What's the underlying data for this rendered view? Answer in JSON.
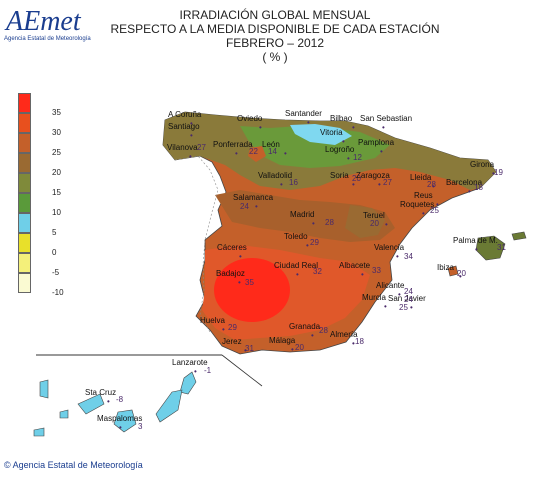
{
  "title_lines": [
    "IRRADIACIÓN GLOBAL MENSUAL",
    "RESPECTO A LA MEDIA DISPONIBLE DE CADA ESTACIÓN",
    "FEBRERO – 2012",
    "( % )"
  ],
  "legend": [
    {
      "value": "35",
      "color": "#ff2a1a"
    },
    {
      "value": "30",
      "color": "#e8501e"
    },
    {
      "value": "25",
      "color": "#c4602a"
    },
    {
      "value": "20",
      "color": "#9a6a32"
    },
    {
      "value": "15",
      "color": "#7f8a3a"
    },
    {
      "value": "10",
      "color": "#5a9a3a"
    },
    {
      "value": "5",
      "color": "#6fcfe8"
    },
    {
      "value": "0",
      "color": "#e8e02a"
    },
    {
      "value": "-5",
      "color": "#f4f07a"
    },
    {
      "value": "-10",
      "color": "#fafad2"
    }
  ],
  "stations": [
    {
      "name": "A Coruña",
      "value": "",
      "nx": 168,
      "ny": 117,
      "vx": 0,
      "vy": 0
    },
    {
      "name": "Santiago",
      "value": "",
      "nx": 168,
      "ny": 129,
      "vx": 0,
      "vy": 0
    },
    {
      "name": "Oviedo",
      "value": "",
      "nx": 237,
      "ny": 121,
      "vx": 0,
      "vy": 0
    },
    {
      "name": "Santander",
      "value": "",
      "nx": 285,
      "ny": 116,
      "vx": 0,
      "vy": 0
    },
    {
      "name": "Bilbao",
      "value": "",
      "nx": 330,
      "ny": 121,
      "vx": 0,
      "vy": 0
    },
    {
      "name": "San Sebastian",
      "value": "",
      "nx": 360,
      "ny": 121,
      "vx": 0,
      "vy": 0
    },
    {
      "name": "Vitoria",
      "value": "",
      "nx": 320,
      "ny": 135,
      "vx": 0,
      "vy": 0
    },
    {
      "name": "Pamplona",
      "value": "",
      "nx": 358,
      "ny": 145,
      "vx": 0,
      "vy": 0
    },
    {
      "name": "Vilanova",
      "value": "27",
      "nx": 167,
      "ny": 150,
      "vx": 197,
      "vy": 150
    },
    {
      "name": "Ponferrada",
      "value": "22",
      "nx": 213,
      "ny": 147,
      "vx": 249,
      "vy": 154
    },
    {
      "name": "León",
      "value": "14",
      "nx": 262,
      "ny": 147,
      "vx": 268,
      "vy": 154
    },
    {
      "name": "Logroño",
      "value": "12",
      "nx": 325,
      "ny": 152,
      "vx": 353,
      "vy": 160
    },
    {
      "name": "Soria",
      "value": "20",
      "nx": 330,
      "ny": 178,
      "vx": 352,
      "vy": 181
    },
    {
      "name": "Zaragoza",
      "value": "27",
      "nx": 356,
      "ny": 178,
      "vx": 383,
      "vy": 185
    },
    {
      "name": "Lleida",
      "value": "28",
      "nx": 410,
      "ny": 180,
      "vx": 427,
      "vy": 187
    },
    {
      "name": "Girona",
      "value": "19",
      "nx": 470,
      "ny": 167,
      "vx": 494,
      "vy": 175
    },
    {
      "name": "Barcelona",
      "value": "18",
      "nx": 446,
      "ny": 185,
      "vx": 474,
      "vy": 190
    },
    {
      "name": "Valladolid",
      "value": "16",
      "nx": 258,
      "ny": 178,
      "vx": 289,
      "vy": 185
    },
    {
      "name": "Salamanca",
      "value": "24",
      "nx": 233,
      "ny": 200,
      "vx": 240,
      "vy": 209
    },
    {
      "name": "Reus",
      "value": "",
      "nx": 414,
      "ny": 198,
      "vx": 0,
      "vy": 0
    },
    {
      "name": "Roquetes",
      "value": "25",
      "nx": 400,
      "ny": 207,
      "vx": 430,
      "vy": 213
    },
    {
      "name": "Madrid",
      "value": "28",
      "nx": 290,
      "ny": 217,
      "vx": 325,
      "vy": 225
    },
    {
      "name": "Teruel",
      "value": "20",
      "nx": 363,
      "ny": 218,
      "vx": 370,
      "vy": 226
    },
    {
      "name": "Toledo",
      "value": "29",
      "nx": 284,
      "ny": 239,
      "vx": 310,
      "vy": 245
    },
    {
      "name": "Palma de M.",
      "value": "31",
      "nx": 453,
      "ny": 243,
      "vx": 497,
      "vy": 250
    },
    {
      "name": "Cáceres",
      "value": "",
      "nx": 217,
      "ny": 250,
      "vx": 0,
      "vy": 0
    },
    {
      "name": "Valencia",
      "value": "34",
      "nx": 374,
      "ny": 250,
      "vx": 404,
      "vy": 259
    },
    {
      "name": "Badajoz",
      "value": "35",
      "nx": 216,
      "ny": 276,
      "vx": 245,
      "vy": 285
    },
    {
      "name": "Ciudad Real",
      "value": "32",
      "nx": 274,
      "ny": 268,
      "vx": 313,
      "vy": 274
    },
    {
      "name": "Albacete",
      "value": "33",
      "nx": 339,
      "ny": 268,
      "vx": 372,
      "vy": 273
    },
    {
      "name": "Ibiza",
      "value": "20",
      "nx": 437,
      "ny": 270,
      "vx": 457,
      "vy": 276
    },
    {
      "name": "Alicante",
      "value": "24",
      "nx": 376,
      "ny": 288,
      "vx": 404,
      "vy": 294
    },
    {
      "name": "Murcia",
      "value": "25",
      "nx": 362,
      "ny": 300,
      "vx": 399,
      "vy": 310
    },
    {
      "name": "San Javier",
      "value": "24",
      "nx": 388,
      "ny": 301,
      "vx": 404,
      "vy": 302
    },
    {
      "name": "Huelva",
      "value": "29",
      "nx": 200,
      "ny": 323,
      "vx": 228,
      "vy": 330
    },
    {
      "name": "Granada",
      "value": "28",
      "nx": 289,
      "ny": 329,
      "vx": 319,
      "vy": 333
    },
    {
      "name": "Almería",
      "value": "18",
      "nx": 330,
      "ny": 337,
      "vx": 355,
      "vy": 344
    },
    {
      "name": "Málaga",
      "value": "20",
      "nx": 269,
      "ny": 343,
      "vx": 295,
      "vy": 350
    },
    {
      "name": "Jerez",
      "value": "31",
      "nx": 222,
      "ny": 344,
      "vx": 245,
      "vy": 351
    },
    {
      "name": "Lanzarote",
      "value": "-1",
      "nx": 172,
      "ny": 365,
      "vx": 204,
      "vy": 373
    },
    {
      "name": "Sta Cruz",
      "value": "-8",
      "nx": 85,
      "ny": 395,
      "vx": 116,
      "vy": 402
    },
    {
      "name": "Maspalomas",
      "value": "3",
      "nx": 97,
      "ny": 421,
      "vx": 138,
      "vy": 429
    }
  ],
  "credit": "Agencia Estatal de Meteorología",
  "logo": {
    "main": "AEmet",
    "sub": "Agencia Estatal de Meteorología"
  }
}
